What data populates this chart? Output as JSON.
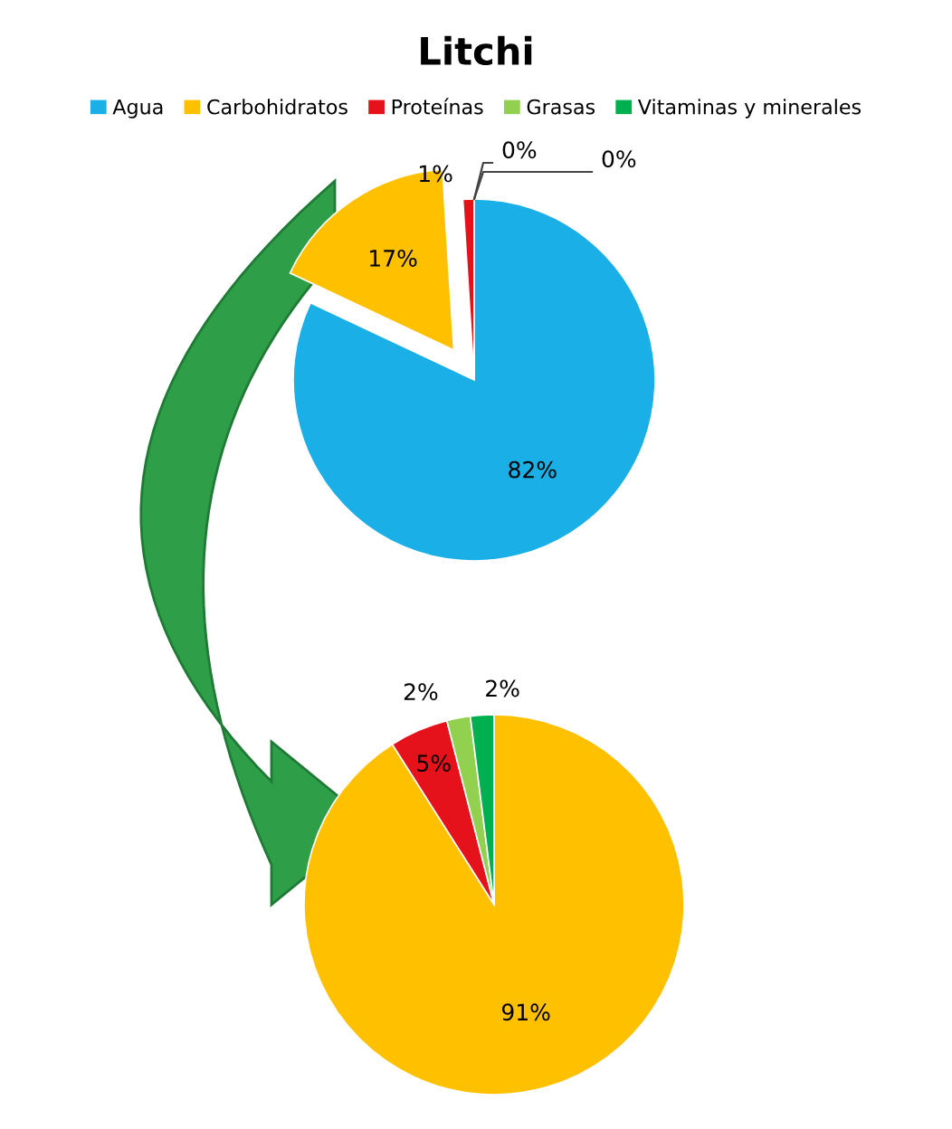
{
  "chart_data": [
    {
      "type": "pie",
      "title": "Litchi",
      "legend": "top",
      "categories": [
        "Agua",
        "Carbohidratos",
        "Proteínas",
        "Grasas",
        "Vitaminas y minerales"
      ],
      "values": [
        82,
        17,
        1,
        0,
        0
      ],
      "value_labels": [
        "82%",
        "17%",
        "1%",
        "0%",
        "0%"
      ],
      "colors": [
        "#1aafe6",
        "#ffc000",
        "#e5121b",
        "#92d050",
        "#00b050"
      ]
    },
    {
      "type": "pie",
      "categories": [
        null,
        null,
        null,
        null
      ],
      "values": [
        91,
        5,
        2,
        2
      ],
      "value_labels": [
        "91%",
        "5%",
        "2%",
        "2%"
      ],
      "colors": [
        "#ffc000",
        "#e5121b",
        "#92d050",
        "#00b050"
      ]
    }
  ]
}
